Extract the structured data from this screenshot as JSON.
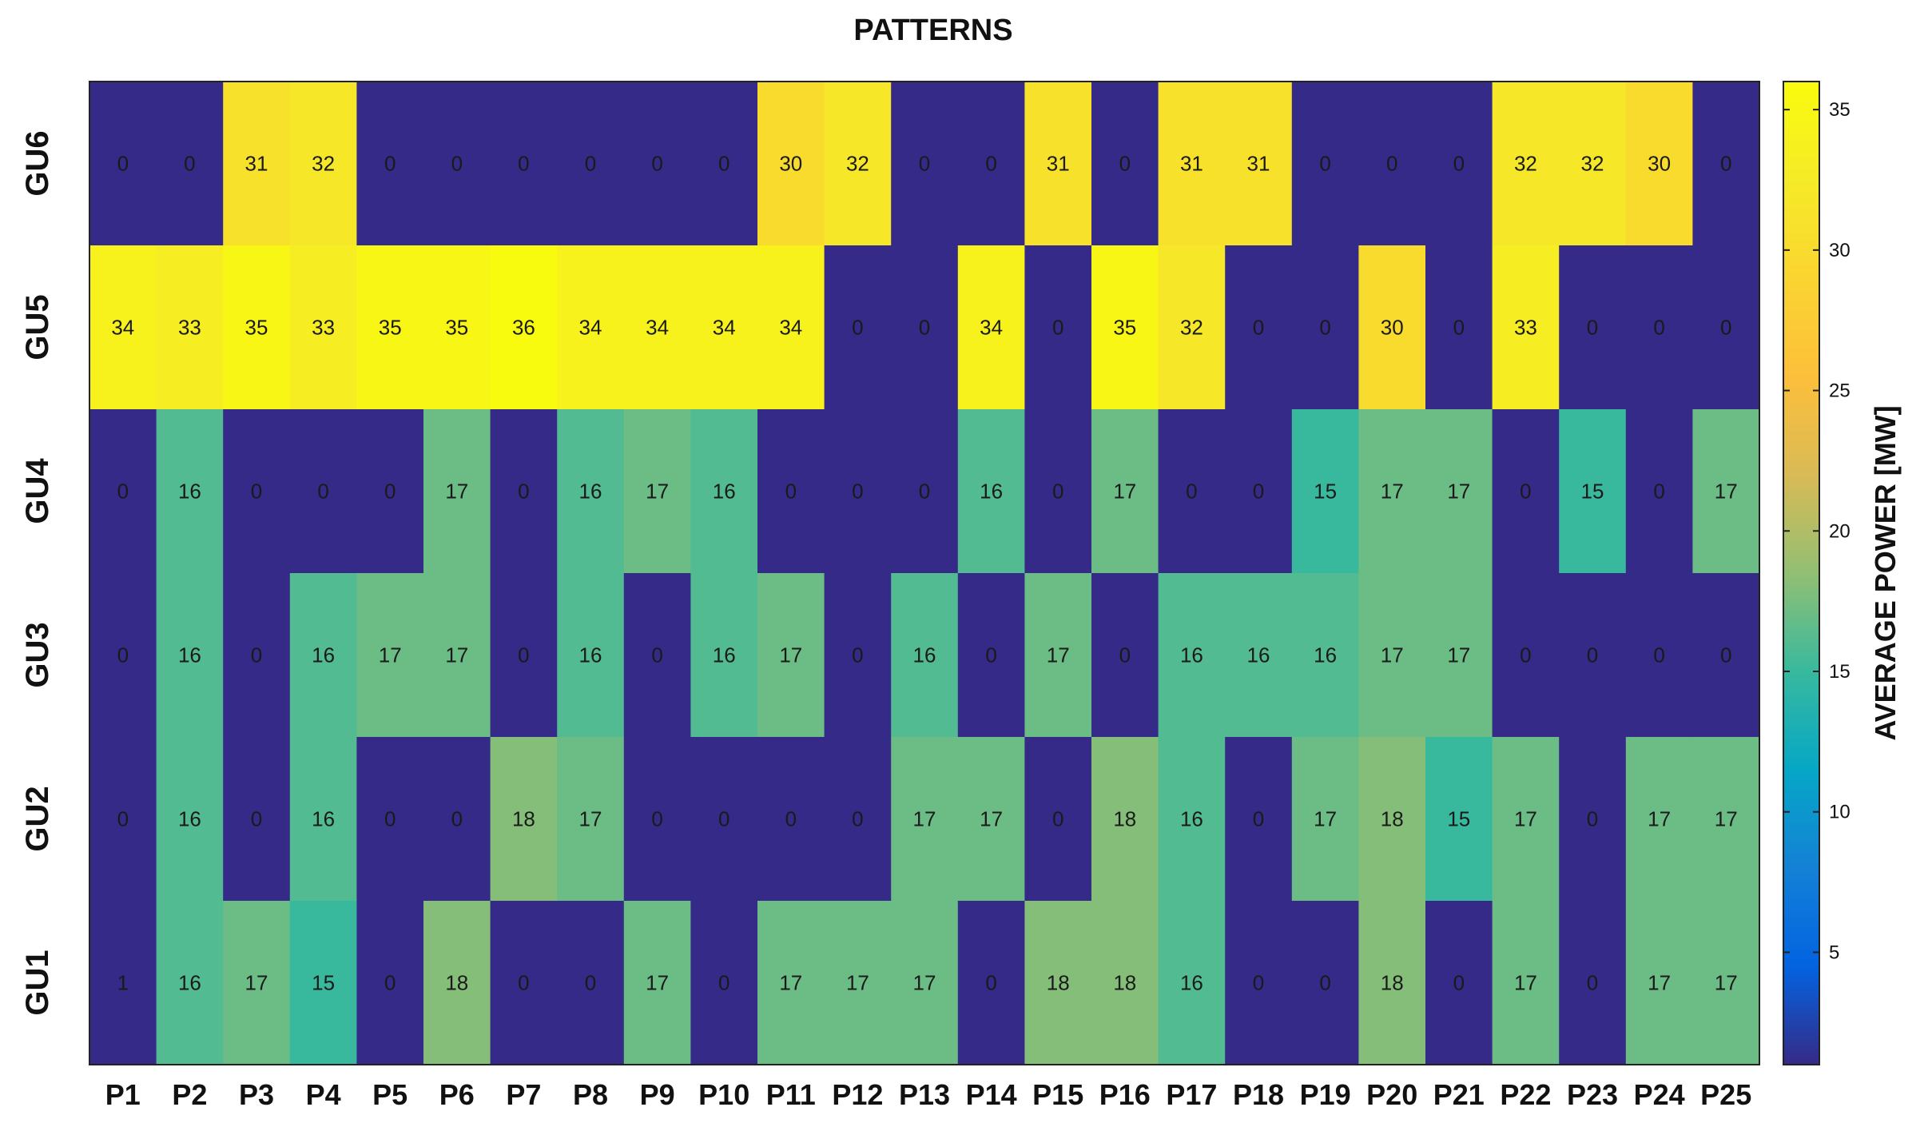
{
  "chart_data": {
    "type": "heatmap",
    "title": "PATTERNS",
    "x_categories": [
      "P1",
      "P2",
      "P3",
      "P4",
      "P5",
      "P6",
      "P7",
      "P8",
      "P9",
      "P10",
      "P11",
      "P12",
      "P13",
      "P14",
      "P15",
      "P16",
      "P17",
      "P18",
      "P19",
      "P20",
      "P21",
      "P22",
      "P23",
      "P24",
      "P25"
    ],
    "y_categories": [
      "GU6",
      "GU5",
      "GU4",
      "GU3",
      "GU2",
      "GU1"
    ],
    "values": [
      [
        0,
        0,
        31,
        32,
        0,
        0,
        0,
        0,
        0,
        0,
        30,
        32,
        0,
        0,
        31,
        0,
        31,
        31,
        0,
        0,
        0,
        32,
        32,
        30,
        0
      ],
      [
        34,
        33,
        35,
        33,
        35,
        35,
        36,
        34,
        34,
        34,
        34,
        0,
        0,
        34,
        0,
        35,
        32,
        0,
        0,
        30,
        0,
        33,
        0,
        0,
        0
      ],
      [
        0,
        16,
        0,
        0,
        0,
        17,
        0,
        16,
        17,
        16,
        0,
        0,
        0,
        16,
        0,
        17,
        0,
        0,
        15,
        17,
        17,
        0,
        15,
        0,
        17
      ],
      [
        0,
        16,
        0,
        16,
        17,
        17,
        0,
        16,
        0,
        16,
        17,
        0,
        16,
        0,
        17,
        0,
        16,
        16,
        16,
        17,
        17,
        0,
        0,
        0,
        0
      ],
      [
        0,
        16,
        0,
        16,
        0,
        0,
        18,
        17,
        0,
        0,
        0,
        0,
        17,
        17,
        0,
        18,
        16,
        0,
        17,
        18,
        15,
        17,
        0,
        17,
        17
      ],
      [
        1,
        16,
        17,
        15,
        0,
        18,
        0,
        0,
        17,
        0,
        17,
        17,
        17,
        0,
        18,
        18,
        16,
        0,
        0,
        18,
        0,
        17,
        0,
        17,
        17
      ]
    ],
    "colorbar": {
      "label": "AVERAGE POWER [MW]",
      "ticks": [
        5,
        10,
        15,
        20,
        25,
        30,
        35
      ],
      "range": [
        1,
        36
      ],
      "colormap": "parula"
    }
  }
}
